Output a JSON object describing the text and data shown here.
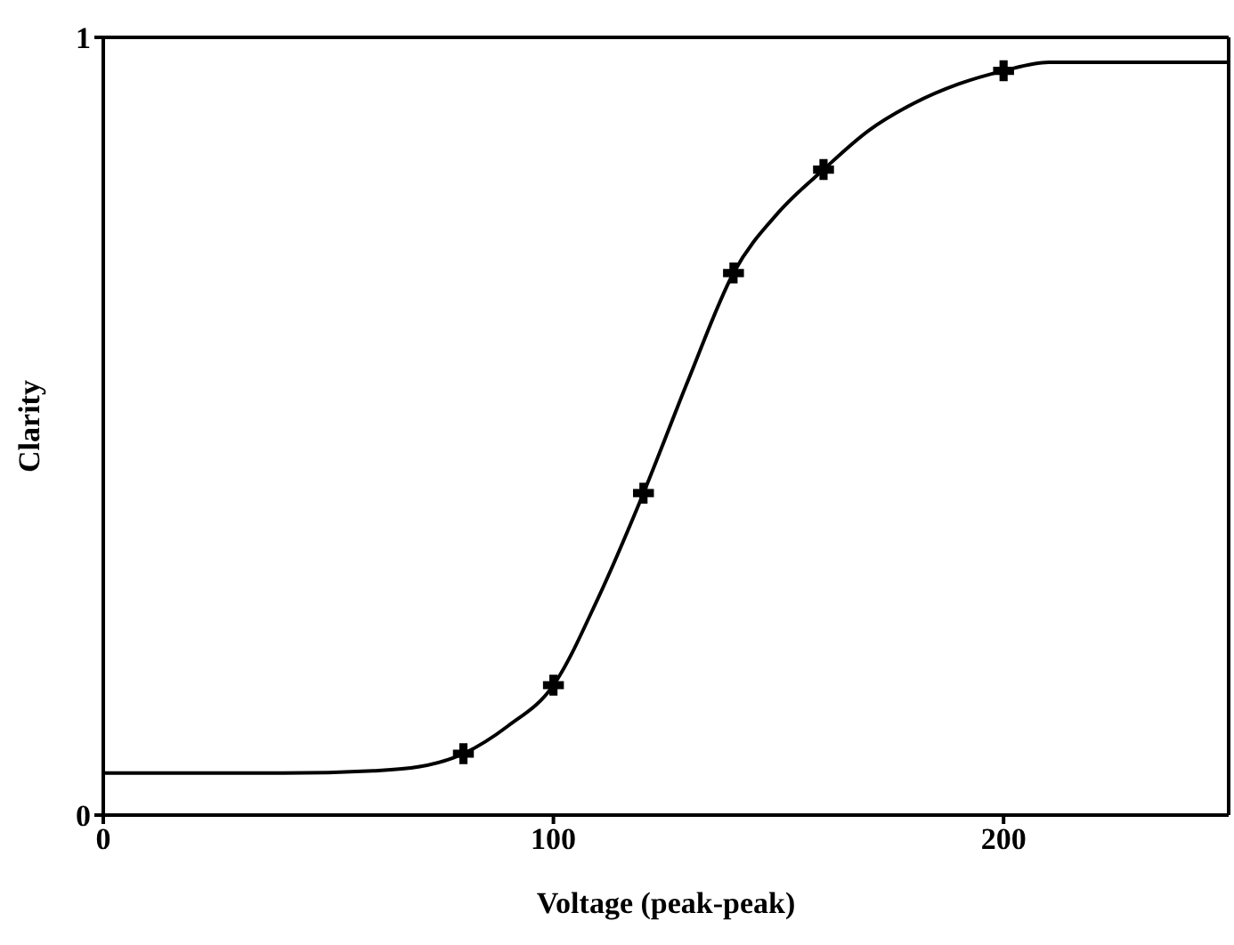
{
  "chart_data": {
    "type": "line",
    "xlabel": "Voltage  (peak-peak)",
    "ylabel": "Clarity",
    "xlim": [
      0,
      250
    ],
    "xticks": [
      0,
      100,
      200
    ],
    "ylim": [
      0,
      1
    ],
    "yticks": [
      0,
      1
    ],
    "grid": false,
    "legend": false,
    "series": [
      {
        "type": "line",
        "color": "#000000",
        "marker": "none",
        "x": [
          0,
          40,
          60,
          70,
          80,
          90,
          100,
          110,
          120,
          130,
          140,
          150,
          160,
          170,
          180,
          190,
          200,
          210,
          250
        ],
        "values": [
          0.054,
          0.054,
          0.057,
          0.062,
          0.079,
          0.115,
          0.167,
          0.28,
          0.414,
          0.56,
          0.697,
          0.775,
          0.83,
          0.88,
          0.915,
          0.94,
          0.957,
          0.968,
          0.968
        ]
      },
      {
        "type": "scatter",
        "color": "#000000",
        "marker": "cross",
        "x": [
          80,
          100,
          120,
          140,
          160,
          200
        ],
        "values": [
          0.079,
          0.167,
          0.414,
          0.697,
          0.83,
          0.957
        ]
      }
    ]
  }
}
